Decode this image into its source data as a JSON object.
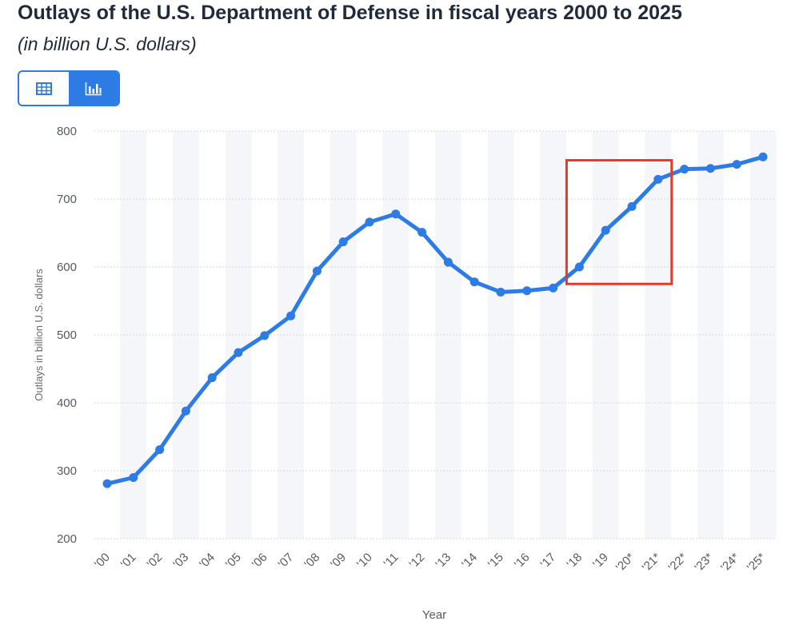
{
  "header": {
    "title": "Outlays of the U.S. Department of Defense in fiscal years 2000 to 2025",
    "subtitle": "(in billion U.S. dollars)"
  },
  "view_toggle": {
    "table_icon": "table-icon",
    "chart_icon": "bar-chart-icon",
    "active": "chart",
    "accent_color": "#2d7be4"
  },
  "chart_data": {
    "type": "line",
    "title": "Outlays of the U.S. Department of Defense in fiscal years 2000 to 2025",
    "subtitle": "(in billion U.S. dollars)",
    "xlabel": "Year",
    "ylabel": "Outlays in billion U.S. dollars",
    "ylim": [
      200,
      800
    ],
    "yticks": [
      200,
      300,
      400,
      500,
      600,
      700,
      800
    ],
    "grid": true,
    "categories": [
      "'00",
      "'01",
      "'02",
      "'03",
      "'04",
      "'05",
      "'06",
      "'07",
      "'08",
      "'09",
      "'10",
      "'11",
      "'12",
      "'13",
      "'14",
      "'15",
      "'16",
      "'17",
      "'18",
      "'19",
      "'20*",
      "'21*",
      "'22*",
      "'23*",
      "'24*",
      "'25*"
    ],
    "series": [
      {
        "values": [
          281,
          290,
          331,
          388,
          437,
          474,
          499,
          528,
          594,
          637,
          666,
          678,
          651,
          607,
          578,
          563,
          565,
          569,
          600,
          654,
          689,
          729,
          744,
          745,
          751,
          762
        ],
        "color": "#2d7be4"
      }
    ],
    "highlight": {
      "from_category": "'18",
      "to_category": "'21*",
      "y_range": [
        575,
        757
      ],
      "color": "#e03b2b"
    }
  }
}
